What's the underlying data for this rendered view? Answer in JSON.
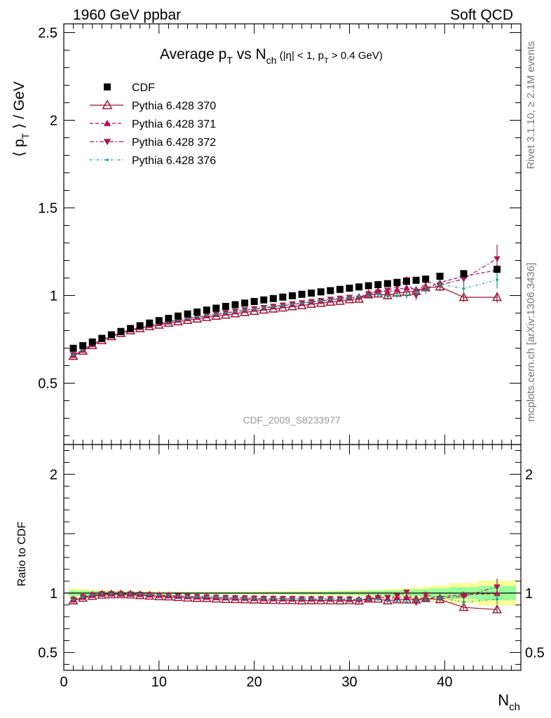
{
  "header": {
    "left": "1960 GeV ppbar",
    "right": "Soft QCD"
  },
  "side_text": {
    "rivet": "Rivet 3.1.10, ≥ 2.1M events",
    "mcplots": "mcplots.cern.ch [arXiv:1306.3436]"
  },
  "watermark": "CDF_2009_S8233977",
  "colors": {
    "cdf": "#000000",
    "p370": "#99102e",
    "p371": "#b01055",
    "p372": "#a81a4f",
    "p376": "#149e86",
    "band_yellow": "#ffff99",
    "band_green": "#99ff99"
  },
  "chart_data": [
    {
      "type": "scatter",
      "title": "Average pT vs Nch (|η| < 1, pT > 0.4 GeV)",
      "title_parts": {
        "main_a": "Average p",
        "main_sub_a": "T",
        "main_b": " vs N",
        "main_sub_b": "ch",
        "cut_a": " (|η| < 1, p",
        "cut_sub": "T",
        "cut_b": " > 0.4 GeV)"
      },
      "ylabel": "⟨ pT ⟩ / GeV",
      "ylabel_parts": {
        "open": "⟨ p",
        "sub": "T",
        "close": " ⟩ / GeV"
      },
      "xlim": [
        0,
        48
      ],
      "ylim": [
        0.15,
        2.55
      ],
      "yticks": [
        {
          "value": 0.5,
          "label": "0.5"
        },
        {
          "value": 1,
          "label": "1"
        },
        {
          "value": 1.5,
          "label": "1.5"
        },
        {
          "value": 2,
          "label": "2"
        },
        {
          "value": 2.5,
          "label": "2.5"
        }
      ],
      "legend_position": "top-left",
      "legend": [
        {
          "key": "cdf",
          "label": "CDF"
        },
        {
          "key": "p370",
          "label": "Pythia 6.428 370"
        },
        {
          "key": "p371",
          "label": "Pythia 6.428 371"
        },
        {
          "key": "p372",
          "label": "Pythia 6.428 372"
        },
        {
          "key": "p376",
          "label": "Pythia 6.428 376"
        }
      ],
      "x": [
        1,
        2,
        3,
        4,
        5,
        6,
        7,
        8,
        9,
        10,
        11,
        12,
        13,
        14,
        15,
        16,
        17,
        18,
        19,
        20,
        21,
        22,
        23,
        24,
        25,
        26,
        27,
        28,
        29,
        30,
        31,
        32,
        33,
        34,
        35,
        36,
        37,
        38,
        39.5,
        42,
        45.5
      ],
      "series": [
        {
          "key": "cdf",
          "name": "CDF",
          "values": [
            0.699,
            0.714,
            0.735,
            0.756,
            0.776,
            0.795,
            0.812,
            0.828,
            0.843,
            0.857,
            0.87,
            0.883,
            0.895,
            0.906,
            0.917,
            0.928,
            0.938,
            0.948,
            0.957,
            0.966,
            0.975,
            0.983,
            0.991,
            0.999,
            1.007,
            1.014,
            1.021,
            1.028,
            1.035,
            1.042,
            1.049,
            1.056,
            1.062,
            1.068,
            1.075,
            1.081,
            1.087,
            1.094,
            1.11,
            1.125,
            1.15
          ]
        },
        {
          "key": "p370",
          "name": "Pythia 6.428 370",
          "values": [
            0.654,
            0.684,
            0.716,
            0.744,
            0.766,
            0.785,
            0.8,
            0.812,
            0.823,
            0.832,
            0.843,
            0.851,
            0.859,
            0.867,
            0.876,
            0.883,
            0.889,
            0.897,
            0.904,
            0.911,
            0.918,
            0.924,
            0.93,
            0.937,
            0.943,
            0.951,
            0.957,
            0.963,
            0.968,
            0.977,
            0.98,
            1.005,
            1.01,
            1.0,
            1.015,
            1.02,
            1.025,
            1.045,
            1.05,
            0.99,
            0.99
          ],
          "errors": [
            0.003,
            0.003,
            0.003,
            0.003,
            0.003,
            0.003,
            0.003,
            0.003,
            0.003,
            0.003,
            0.003,
            0.003,
            0.003,
            0.003,
            0.004,
            0.004,
            0.004,
            0.004,
            0.004,
            0.005,
            0.005,
            0.005,
            0.005,
            0.006,
            0.006,
            0.006,
            0.007,
            0.007,
            0.008,
            0.008,
            0.009,
            0.01,
            0.011,
            0.012,
            0.013,
            0.015,
            0.017,
            0.019,
            0.022,
            0.026,
            0.03
          ]
        },
        {
          "key": "p371",
          "name": "Pythia 6.428 371",
          "values": [
            0.658,
            0.688,
            0.72,
            0.748,
            0.77,
            0.788,
            0.804,
            0.818,
            0.829,
            0.84,
            0.849,
            0.859,
            0.868,
            0.876,
            0.884,
            0.892,
            0.9,
            0.907,
            0.915,
            0.922,
            0.929,
            0.935,
            0.942,
            0.949,
            0.955,
            0.962,
            0.968,
            0.975,
            0.981,
            0.985,
            0.995,
            1.005,
            1.03,
            1.02,
            1.035,
            1.045,
            1.035,
            1.04,
            1.075,
            1.11,
            1.145
          ],
          "errors": [
            0.003,
            0.003,
            0.003,
            0.003,
            0.003,
            0.003,
            0.003,
            0.003,
            0.003,
            0.003,
            0.003,
            0.003,
            0.003,
            0.003,
            0.004,
            0.004,
            0.004,
            0.004,
            0.004,
            0.005,
            0.005,
            0.005,
            0.005,
            0.006,
            0.006,
            0.006,
            0.007,
            0.007,
            0.008,
            0.008,
            0.009,
            0.01,
            0.011,
            0.012,
            0.013,
            0.015,
            0.017,
            0.019,
            0.022,
            0.026,
            0.03
          ]
        },
        {
          "key": "p372",
          "name": "Pythia 6.428 372",
          "values": [
            0.662,
            0.692,
            0.724,
            0.752,
            0.772,
            0.79,
            0.806,
            0.82,
            0.832,
            0.843,
            0.853,
            0.862,
            0.871,
            0.879,
            0.888,
            0.895,
            0.903,
            0.911,
            0.919,
            0.925,
            0.932,
            0.939,
            0.946,
            0.953,
            0.959,
            0.966,
            0.972,
            0.979,
            0.985,
            0.99,
            0.985,
            1.01,
            1.02,
            1.03,
            1.05,
            1.09,
            1.0,
            1.08,
            1.06,
            1.095,
            1.21
          ],
          "errors": [
            0.003,
            0.003,
            0.003,
            0.003,
            0.003,
            0.003,
            0.003,
            0.003,
            0.003,
            0.003,
            0.003,
            0.003,
            0.003,
            0.003,
            0.004,
            0.004,
            0.004,
            0.004,
            0.004,
            0.005,
            0.005,
            0.005,
            0.005,
            0.006,
            0.006,
            0.006,
            0.007,
            0.007,
            0.008,
            0.008,
            0.009,
            0.01,
            0.012,
            0.014,
            0.016,
            0.02,
            0.025,
            0.028,
            0.035,
            0.045,
            0.08
          ]
        },
        {
          "key": "p376",
          "name": "Pythia 6.428 376",
          "values": [
            0.66,
            0.69,
            0.722,
            0.75,
            0.77,
            0.789,
            0.805,
            0.819,
            0.831,
            0.842,
            0.852,
            0.861,
            0.87,
            0.878,
            0.886,
            0.894,
            0.901,
            0.908,
            0.916,
            0.923,
            0.93,
            0.937,
            0.944,
            0.951,
            0.957,
            0.964,
            0.97,
            0.976,
            0.982,
            0.988,
            0.995,
            1.0,
            1.005,
            0.995,
            1.0,
            1.0,
            1.02,
            1.03,
            1.065,
            1.04,
            1.09
          ],
          "errors": [
            0.003,
            0.003,
            0.003,
            0.003,
            0.003,
            0.003,
            0.003,
            0.003,
            0.003,
            0.003,
            0.003,
            0.003,
            0.003,
            0.003,
            0.004,
            0.004,
            0.004,
            0.004,
            0.004,
            0.005,
            0.005,
            0.005,
            0.005,
            0.006,
            0.006,
            0.006,
            0.007,
            0.007,
            0.008,
            0.008,
            0.009,
            0.01,
            0.011,
            0.012,
            0.014,
            0.018,
            0.02,
            0.022,
            0.028,
            0.035,
            0.05
          ]
        }
      ]
    },
    {
      "type": "scatter",
      "title": "",
      "ylabel": "Ratio to CDF",
      "xlabel": "Nch",
      "xlabel_parts": {
        "main": "N",
        "sub": "ch"
      },
      "xlim": [
        0,
        48
      ],
      "ylim": [
        0.35,
        2.25
      ],
      "xticks": [
        {
          "value": 0,
          "label": "0"
        },
        {
          "value": 10,
          "label": "10"
        },
        {
          "value": 20,
          "label": "20"
        },
        {
          "value": 30,
          "label": "30"
        },
        {
          "value": 40,
          "label": "40"
        }
      ],
      "yticks": [
        {
          "value": 0.5,
          "label": "0.5"
        },
        {
          "value": 1,
          "label": "1"
        },
        {
          "value": 2,
          "label": "2"
        }
      ],
      "bands": {
        "x_edges": [
          0.5,
          1.5,
          2.5,
          3.5,
          4.5,
          5.5,
          6.5,
          7.5,
          8.5,
          9.5,
          10.5,
          11.5,
          12.5,
          13.5,
          14.5,
          15.5,
          16.5,
          17.5,
          18.5,
          19.5,
          20.5,
          21.5,
          22.5,
          23.5,
          24.5,
          25.5,
          26.5,
          27.5,
          28.5,
          29.5,
          30.5,
          31.5,
          32.5,
          33.5,
          34.5,
          35.5,
          36.5,
          37.5,
          38.5,
          40.5,
          43.5,
          47.5
        ],
        "yellow": [
          0.04,
          0.035,
          0.03,
          0.026,
          0.023,
          0.02,
          0.018,
          0.016,
          0.015,
          0.014,
          0.013,
          0.012,
          0.012,
          0.012,
          0.012,
          0.012,
          0.012,
          0.012,
          0.013,
          0.013,
          0.014,
          0.014,
          0.015,
          0.016,
          0.017,
          0.018,
          0.019,
          0.02,
          0.022,
          0.024,
          0.026,
          0.028,
          0.031,
          0.034,
          0.038,
          0.043,
          0.048,
          0.055,
          0.065,
          0.085,
          0.105
        ],
        "green": [
          0.025,
          0.022,
          0.019,
          0.016,
          0.014,
          0.012,
          0.011,
          0.01,
          0.009,
          0.008,
          0.008,
          0.008,
          0.008,
          0.008,
          0.008,
          0.008,
          0.008,
          0.008,
          0.008,
          0.008,
          0.009,
          0.009,
          0.009,
          0.01,
          0.01,
          0.011,
          0.012,
          0.013,
          0.014,
          0.015,
          0.016,
          0.018,
          0.02,
          0.022,
          0.024,
          0.027,
          0.03,
          0.034,
          0.04,
          0.05,
          0.06
        ]
      }
    }
  ]
}
